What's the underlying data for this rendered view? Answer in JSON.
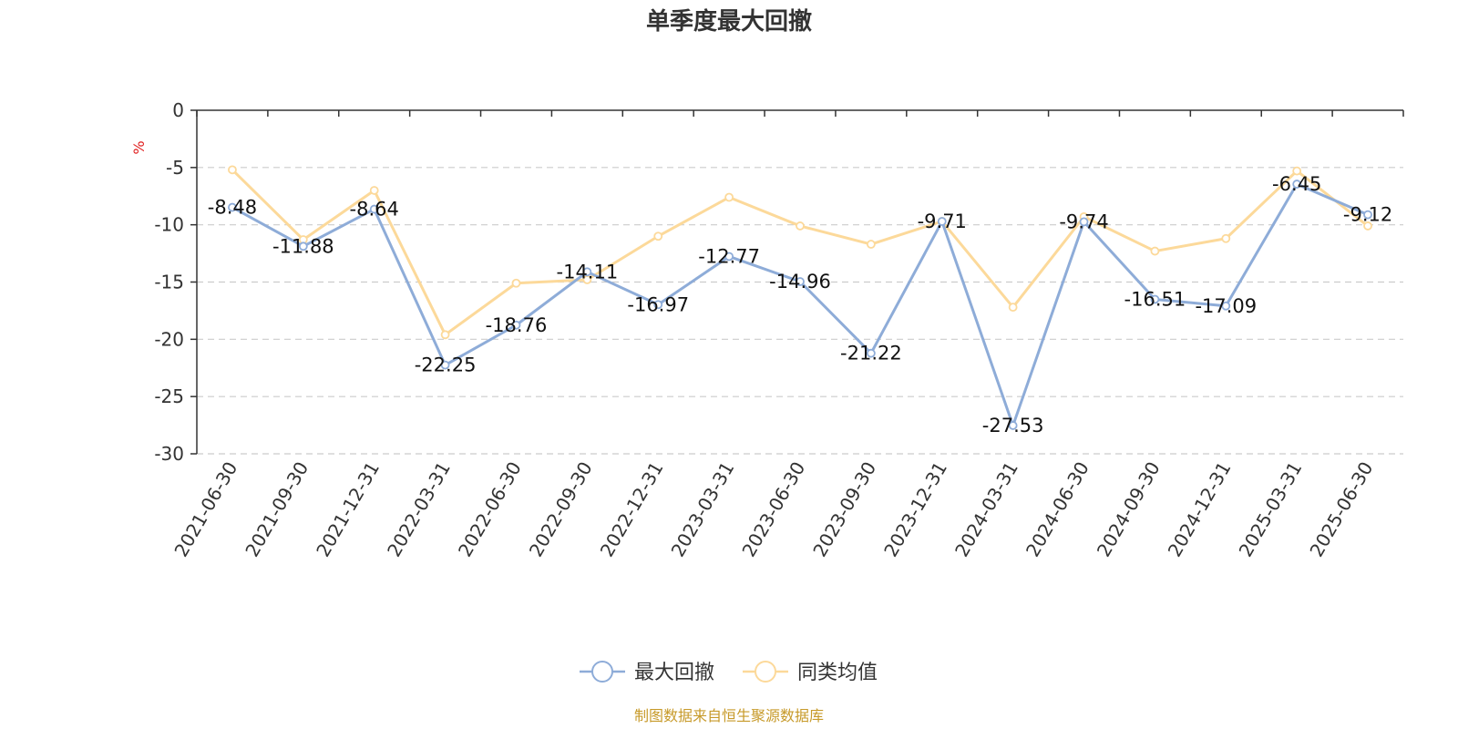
{
  "chart_data": {
    "type": "line",
    "title": "单季度最大回撤",
    "ylabel": "%",
    "ylim": [
      -30,
      0
    ],
    "yticks": [
      0,
      -5,
      -10,
      -15,
      -20,
      -25,
      -30
    ],
    "grid": true,
    "legend_position": "bottom",
    "categories": [
      "2021-06-30",
      "2021-09-30",
      "2021-12-31",
      "2022-03-31",
      "2022-06-30",
      "2022-09-30",
      "2022-12-31",
      "2023-03-31",
      "2023-06-30",
      "2023-09-30",
      "2023-12-31",
      "2024-03-31",
      "2024-06-30",
      "2024-09-30",
      "2024-12-31",
      "2025-03-31",
      "2025-06-30"
    ],
    "series": [
      {
        "name": "最大回撤",
        "color": "#8eacd8",
        "values": [
          -8.48,
          -11.88,
          -8.64,
          -22.25,
          -18.76,
          -14.11,
          -16.97,
          -12.77,
          -14.96,
          -21.22,
          -9.71,
          -27.53,
          -9.74,
          -16.51,
          -17.09,
          -6.45,
          -9.12
        ],
        "show_labels": true
      },
      {
        "name": "同类均值",
        "color": "#fcd99a",
        "values": [
          -5.2,
          -11.3,
          -7.0,
          -19.6,
          -15.1,
          -14.8,
          -11.0,
          -7.6,
          -10.1,
          -11.7,
          -9.7,
          -17.2,
          -9.3,
          -12.3,
          -11.2,
          -5.3,
          -10.1
        ],
        "show_labels": false
      }
    ],
    "source": "制图数据来自恒生聚源数据库"
  }
}
